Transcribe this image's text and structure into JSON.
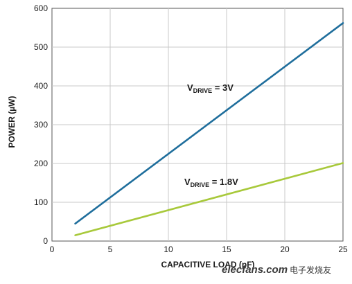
{
  "chart_data": {
    "type": "line",
    "xlabel": "CAPACITIVE LOAD (pF)",
    "ylabel": "POWER (µW)",
    "xlim": [
      0,
      25
    ],
    "ylim": [
      0,
      600
    ],
    "xticks": [
      0,
      5,
      10,
      15,
      20,
      25
    ],
    "yticks": [
      0,
      100,
      200,
      300,
      400,
      500,
      600
    ],
    "grid": true,
    "series": [
      {
        "name": "VDRIVE = 3V",
        "x": [
          2,
          25
        ],
        "y": [
          45,
          562
        ],
        "color": "#1f6e9c"
      },
      {
        "name": "VDRIVE = 1.8V",
        "x": [
          2,
          25
        ],
        "y": [
          15,
          201
        ],
        "color": "#a8c93b"
      }
    ],
    "annotations": [
      {
        "main": "V",
        "sub": "DRIVE",
        "rest": " = 3V"
      },
      {
        "main": "V",
        "sub": "DRIVE",
        "rest": " = 1.8V"
      }
    ]
  },
  "watermark": {
    "text_en": "elecfans.com",
    "text_cn": "电子发烧友"
  }
}
